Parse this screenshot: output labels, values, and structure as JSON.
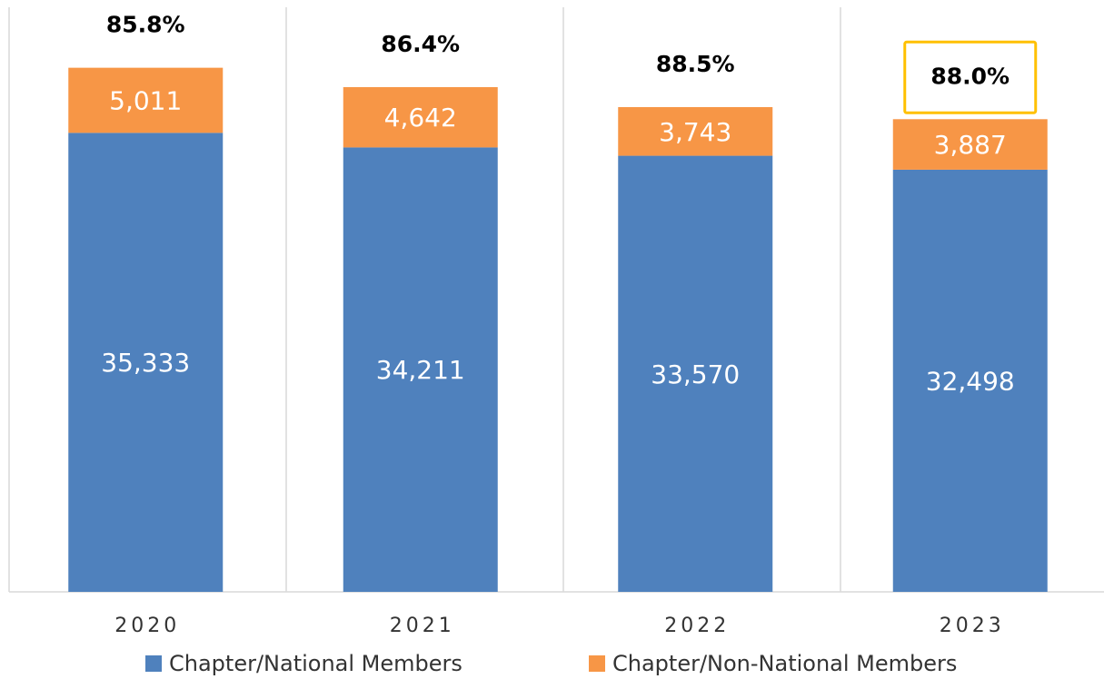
{
  "chart_data": {
    "type": "stacked_bar",
    "categories": [
      "2020",
      "2021",
      "2022",
      "2023"
    ],
    "series": [
      {
        "name": "Chapter/National Members",
        "color": "#4f81bd",
        "values": [
          35333,
          34211,
          33570,
          32498
        ],
        "value_labels": [
          "35,333",
          "34,211",
          "33,570",
          "32,498"
        ]
      },
      {
        "name": "Chapter/Non-National Members",
        "color": "#f79646",
        "values": [
          5011,
          4642,
          3743,
          3887
        ],
        "value_labels": [
          "5,011",
          "4,642",
          "3,743",
          "3,887"
        ]
      }
    ],
    "annotations": {
      "values": [
        85.8,
        86.4,
        88.5,
        88.0
      ],
      "value_labels": [
        "85.8%",
        "86.4%",
        "88.5%",
        "88.0%"
      ],
      "highlight": 3,
      "highlight_color": "#ffc000"
    },
    "ylim": [
      0,
      45000
    ],
    "legend": "bottom"
  }
}
